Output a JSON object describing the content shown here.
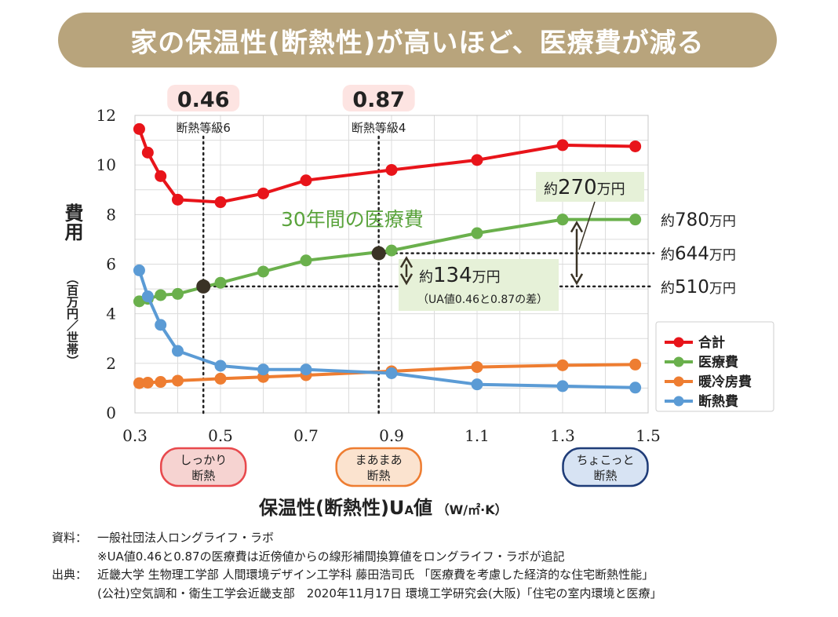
{
  "banner": {
    "title": "家の保温性(断熱性)が高いほど、医療費が減る"
  },
  "chart_data": {
    "type": "line",
    "xlim": [
      0.3,
      1.5
    ],
    "ylim": [
      0,
      12
    ],
    "x_ticks": [
      "0.3",
      "0.5",
      "0.7",
      "0.9",
      "1.1",
      "1.3",
      "1.5"
    ],
    "y_ticks": [
      "0",
      "2",
      "4",
      "6",
      "8",
      "10",
      "12"
    ],
    "ylabel_main": "費用",
    "ylabel_sub": "（百万円／世帯）",
    "xlabel_main": "保温性(断熱性)U",
    "xlabel_sub": "A",
    "xlabel_tail": "値",
    "xlabel_unit": "（W/㎡·K）",
    "grid": true,
    "legend_position": "right",
    "series": [
      {
        "name": "合計",
        "color": "#e8141a",
        "points": [
          [
            0.31,
            11.45
          ],
          [
            0.33,
            10.5
          ],
          [
            0.36,
            9.55
          ],
          [
            0.4,
            8.6
          ],
          [
            0.5,
            8.5
          ],
          [
            0.6,
            8.85
          ],
          [
            0.7,
            9.38
          ],
          [
            0.9,
            9.8
          ],
          [
            1.1,
            10.2
          ],
          [
            1.3,
            10.8
          ],
          [
            1.47,
            10.75
          ]
        ]
      },
      {
        "name": "医療費",
        "color": "#6ab04c",
        "points": [
          [
            0.31,
            4.5
          ],
          [
            0.33,
            4.6
          ],
          [
            0.36,
            4.75
          ],
          [
            0.4,
            4.8
          ],
          [
            0.5,
            5.25
          ],
          [
            0.6,
            5.7
          ],
          [
            0.7,
            6.15
          ],
          [
            0.9,
            6.55
          ],
          [
            1.1,
            7.25
          ],
          [
            1.3,
            7.8
          ],
          [
            1.47,
            7.8
          ]
        ]
      },
      {
        "name": "暖冷房費",
        "color": "#ee7d31",
        "points": [
          [
            0.31,
            1.2
          ],
          [
            0.33,
            1.22
          ],
          [
            0.36,
            1.25
          ],
          [
            0.4,
            1.3
          ],
          [
            0.5,
            1.38
          ],
          [
            0.6,
            1.45
          ],
          [
            0.7,
            1.52
          ],
          [
            0.9,
            1.68
          ],
          [
            1.1,
            1.85
          ],
          [
            1.3,
            1.92
          ],
          [
            1.47,
            1.95
          ]
        ]
      },
      {
        "name": "断熱費",
        "color": "#5b9bd5",
        "points": [
          [
            0.31,
            5.75
          ],
          [
            0.33,
            4.7
          ],
          [
            0.36,
            3.55
          ],
          [
            0.4,
            2.5
          ],
          [
            0.5,
            1.9
          ],
          [
            0.6,
            1.75
          ],
          [
            0.7,
            1.75
          ],
          [
            0.9,
            1.6
          ],
          [
            1.1,
            1.15
          ],
          [
            1.3,
            1.08
          ],
          [
            1.47,
            1.02
          ]
        ]
      }
    ],
    "markers": [
      {
        "x": 0.46,
        "y": 5.1,
        "value_label": "0.46",
        "grade_label": "断熱等級6"
      },
      {
        "x": 0.87,
        "y": 6.44,
        "value_label": "0.87",
        "grade_label": "断熱等級4"
      }
    ],
    "annotations": {
      "medical_title": "30年間の医療費",
      "diff_270": {
        "prefix": "約",
        "number": "270",
        "unit": "万円"
      },
      "diff_134": {
        "prefix": "約",
        "number": "134",
        "unit": "万円"
      },
      "diff_134_note": "（UA値0.46と0.87の差）",
      "right_labels": [
        {
          "prefix": "約",
          "number": "780",
          "unit": "万円",
          "y": 7.8
        },
        {
          "prefix": "約",
          "number": "644",
          "unit": "万円",
          "y": 6.44
        },
        {
          "prefix": "約",
          "number": "510",
          "unit": "万円",
          "y": 5.1
        }
      ]
    },
    "insulation_badges": [
      {
        "x": 0.46,
        "line1": "しっかり",
        "line2": "断熱",
        "fill": "#f6d3d1",
        "stroke": "#e8494d"
      },
      {
        "x": 0.87,
        "line1": "まあまあ",
        "line2": "断熱",
        "fill": "#fbe3cf",
        "stroke": "#ee7d31"
      },
      {
        "x": 1.4,
        "line1": "ちょこっと",
        "line2": "断熱",
        "fill": "#d7e3f3",
        "stroke": "#1f3c78"
      }
    ]
  },
  "notes": {
    "source_label": "資料：",
    "source_text": "一般社団法人ロングライフ・ラボ",
    "source_note": "※UA値0.46と0.87の医療費は近傍値からの線形補間換算値をロングライフ・ラボが追記",
    "ref_label": "出典：",
    "ref_line1": "近畿大学 生物理工学部 人間環境デザイン工学科 藤田浩司氏 「医療費を考慮した経済的な住宅断熱性能」",
    "ref_line2": "(公社)空気調和・衛生工学会近畿支部　2020年11月17日 環境工学研究会(大阪)「住宅の室内環境と医療」"
  }
}
